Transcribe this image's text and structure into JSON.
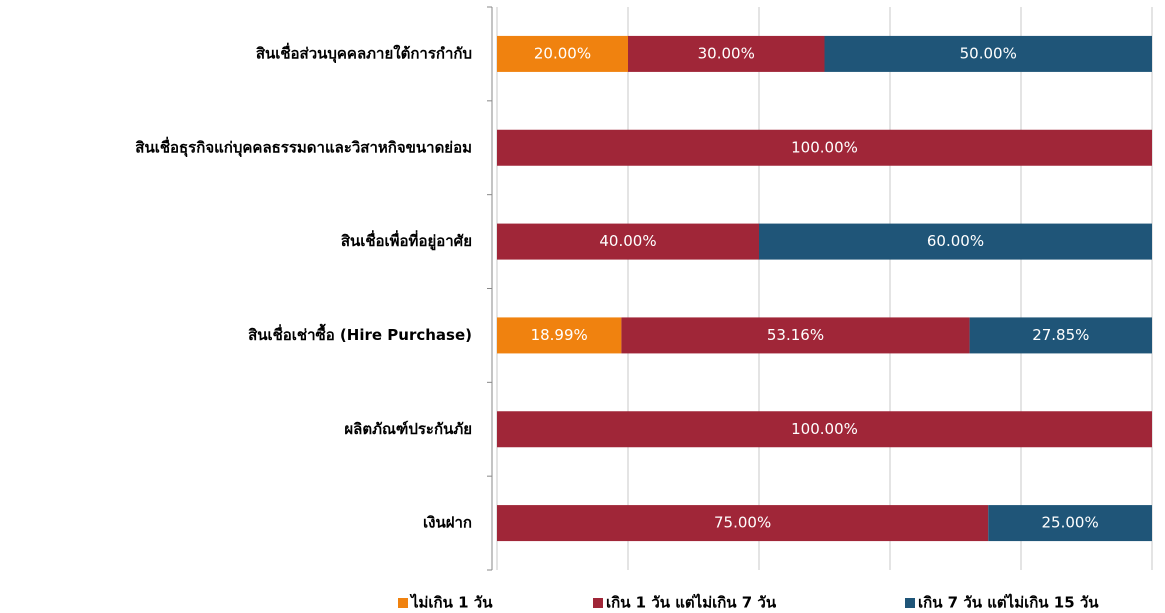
{
  "chart_data": {
    "type": "stacked_barh",
    "categories": [
      "สินเชื่อส่วนบุคคลภายใต้การกำกับ",
      "สินเชื่อธุรกิจแก่บุคคลธรรมดาและวิสาหกิจขนาดย่อม",
      "สินเชื่อเพื่อที่อยู่อาศัย",
      "สินเชื่อเช่าซื้อ (Hire Purchase)",
      "ผลิตภัณฑ์ประกันภัย",
      "เงินฝาก"
    ],
    "series": [
      {
        "name": "ไม่เกิน 1 วัน",
        "color": "#f0820f",
        "values": [
          20,
          null,
          null,
          18.99,
          null,
          null
        ],
        "value_labels": [
          "20.00%",
          null,
          null,
          "18.99%",
          null,
          null
        ]
      },
      {
        "name": "เกิน 1 วัน แต่ไม่เกิน 7 วัน",
        "color": "#a02638",
        "values": [
          30,
          100,
          40,
          53.16,
          100,
          75
        ],
        "value_labels": [
          "30.00%",
          "100.00%",
          "40.00%",
          "53.16%",
          "100.00%",
          "75.00%"
        ]
      },
      {
        "name": "เกิน 7 วัน แต่ไม่เกิน 15 วัน",
        "color": "#1f5578",
        "values": [
          50,
          null,
          60,
          27.85,
          null,
          25
        ],
        "value_labels": [
          "50.00%",
          null,
          "60.00%",
          "27.85%",
          null,
          "25.00%"
        ]
      }
    ],
    "xlim": [
      0,
      100
    ],
    "xticks": [
      0,
      20,
      40,
      60,
      80,
      100
    ],
    "grid": true,
    "legend": "bottom"
  }
}
